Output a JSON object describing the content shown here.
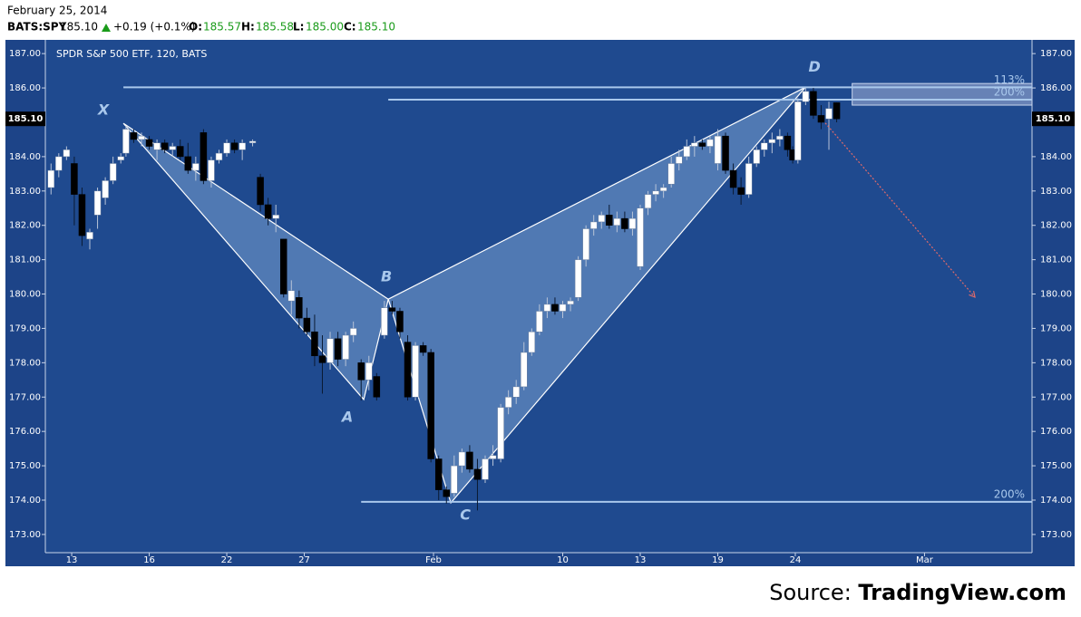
{
  "header": {
    "date": "February 25, 2014",
    "symbol": "BATS:SPY",
    "price": "185.10",
    "change": "+0.19 (+0.1%)",
    "open_label": "O:",
    "open": "185.57",
    "high_label": "H:",
    "high": "185.58",
    "low_label": "L:",
    "low": "185.00",
    "close_label": "C:",
    "close": "185.10"
  },
  "source": {
    "prefix": "Source:",
    "name": "TradingView.com"
  },
  "chart_data": {
    "type": "candlestick",
    "title": "SPDR S&P 500 ETF, 120, BATS",
    "up_color": "#ffffff",
    "down_color": "#000000",
    "xlim": [
      -1.02,
      37.16
    ],
    "xticks": [
      {
        "value": 0,
        "label": "13"
      },
      {
        "value": 3,
        "label": "16"
      },
      {
        "value": 6,
        "label": "22"
      },
      {
        "value": 9,
        "label": "27"
      },
      {
        "value": 14,
        "label": "Feb"
      },
      {
        "value": 19,
        "label": "10"
      },
      {
        "value": 22,
        "label": "13"
      },
      {
        "value": 25,
        "label": "19"
      },
      {
        "value": 28,
        "label": "24"
      },
      {
        "value": 33,
        "label": "Mar"
      }
    ],
    "ylim": [
      172.47,
      187.4
    ],
    "yticks": [
      {
        "value": 173,
        "label": "173.00"
      },
      {
        "value": 174,
        "label": "174.00"
      },
      {
        "value": 175,
        "label": "175.00"
      },
      {
        "value": 176,
        "label": "176.00"
      },
      {
        "value": 177,
        "label": "177.00"
      },
      {
        "value": 178,
        "label": "178.00"
      },
      {
        "value": 179,
        "label": "179.00"
      },
      {
        "value": 180,
        "label": "180.00"
      },
      {
        "value": 181,
        "label": "181.00"
      },
      {
        "value": 182,
        "label": "182.00"
      },
      {
        "value": 183,
        "label": "183.00"
      },
      {
        "value": 184,
        "label": "184.00"
      },
      {
        "value": 185,
        "label": "185.00"
      },
      {
        "value": 186,
        "label": "186.00"
      },
      {
        "value": 187,
        "label": "187.00"
      }
    ],
    "last_price": {
      "value": 185.1,
      "label": "185.10"
    },
    "candles": [
      {
        "x": -0.8,
        "o": 183.1,
        "h": 183.8,
        "l": 182.9,
        "c": 183.6
      },
      {
        "x": -0.5,
        "o": 183.6,
        "h": 184.1,
        "l": 183.4,
        "c": 184.0
      },
      {
        "x": -0.2,
        "o": 184.0,
        "h": 184.3,
        "l": 183.9,
        "c": 184.2
      },
      {
        "x": 0.1,
        "o": 183.8,
        "h": 184.0,
        "l": 182.0,
        "c": 182.9
      },
      {
        "x": 0.4,
        "o": 182.9,
        "h": 183.1,
        "l": 181.4,
        "c": 181.7
      },
      {
        "x": 0.7,
        "o": 181.6,
        "h": 181.9,
        "l": 181.3,
        "c": 181.8
      },
      {
        "x": 1.0,
        "o": 182.3,
        "h": 183.1,
        "l": 181.9,
        "c": 183.0
      },
      {
        "x": 1.3,
        "o": 182.8,
        "h": 183.4,
        "l": 182.6,
        "c": 183.3
      },
      {
        "x": 1.6,
        "o": 183.3,
        "h": 184.0,
        "l": 183.2,
        "c": 183.8
      },
      {
        "x": 1.9,
        "o": 183.9,
        "h": 184.1,
        "l": 183.8,
        "c": 184.0
      },
      {
        "x": 2.1,
        "o": 184.1,
        "h": 184.9,
        "l": 184.0,
        "c": 184.8
      },
      {
        "x": 2.4,
        "o": 184.7,
        "h": 184.8,
        "l": 184.4,
        "c": 184.5
      },
      {
        "x": 2.7,
        "o": 184.5,
        "h": 184.7,
        "l": 184.3,
        "c": 184.6
      },
      {
        "x": 3.0,
        "o": 184.5,
        "h": 184.6,
        "l": 184.2,
        "c": 184.3
      },
      {
        "x": 3.3,
        "o": 184.2,
        "h": 184.5,
        "l": 183.9,
        "c": 184.4
      },
      {
        "x": 3.6,
        "o": 184.4,
        "h": 184.5,
        "l": 184.1,
        "c": 184.2
      },
      {
        "x": 3.9,
        "o": 184.2,
        "h": 184.4,
        "l": 184.0,
        "c": 184.3
      },
      {
        "x": 4.2,
        "o": 184.3,
        "h": 184.5,
        "l": 183.9,
        "c": 184.0
      },
      {
        "x": 4.5,
        "o": 184.0,
        "h": 184.4,
        "l": 183.5,
        "c": 183.6
      },
      {
        "x": 4.8,
        "o": 183.6,
        "h": 184.0,
        "l": 183.3,
        "c": 183.8
      },
      {
        "x": 5.1,
        "o": 184.7,
        "h": 184.8,
        "l": 183.2,
        "c": 183.3
      },
      {
        "x": 5.4,
        "o": 183.3,
        "h": 184.0,
        "l": 183.1,
        "c": 183.9
      },
      {
        "x": 5.7,
        "o": 183.9,
        "h": 184.2,
        "l": 183.8,
        "c": 184.1
      },
      {
        "x": 6.0,
        "o": 184.1,
        "h": 184.5,
        "l": 184.0,
        "c": 184.4
      },
      {
        "x": 6.3,
        "o": 184.4,
        "h": 184.5,
        "l": 184.1,
        "c": 184.2
      },
      {
        "x": 6.6,
        "o": 184.2,
        "h": 184.5,
        "l": 183.9,
        "c": 184.4
      },
      {
        "x": 7.0,
        "o": 184.4,
        "h": 184.5,
        "l": 184.3,
        "c": 184.45
      },
      {
        "x": 7.3,
        "o": 183.4,
        "h": 183.5,
        "l": 182.4,
        "c": 182.6
      },
      {
        "x": 7.6,
        "o": 182.6,
        "h": 182.8,
        "l": 182.0,
        "c": 182.2
      },
      {
        "x": 7.9,
        "o": 182.2,
        "h": 182.6,
        "l": 181.8,
        "c": 182.3
      },
      {
        "x": 8.2,
        "o": 181.6,
        "h": 181.6,
        "l": 179.9,
        "c": 180.0
      },
      {
        "x": 8.5,
        "o": 179.8,
        "h": 180.4,
        "l": 179.4,
        "c": 180.1
      },
      {
        "x": 8.8,
        "o": 179.9,
        "h": 180.1,
        "l": 179.0,
        "c": 179.3
      },
      {
        "x": 9.1,
        "o": 179.3,
        "h": 179.6,
        "l": 178.8,
        "c": 178.9
      },
      {
        "x": 9.4,
        "o": 178.9,
        "h": 179.4,
        "l": 177.9,
        "c": 178.2
      },
      {
        "x": 9.7,
        "o": 178.2,
        "h": 178.8,
        "l": 177.1,
        "c": 178.0
      },
      {
        "x": 10.0,
        "o": 178.0,
        "h": 178.9,
        "l": 177.8,
        "c": 178.7
      },
      {
        "x": 10.3,
        "o": 178.7,
        "h": 178.9,
        "l": 177.9,
        "c": 178.1
      },
      {
        "x": 10.6,
        "o": 178.1,
        "h": 178.9,
        "l": 177.9,
        "c": 178.8
      },
      {
        "x": 10.9,
        "o": 178.8,
        "h": 179.2,
        "l": 178.6,
        "c": 179.0
      },
      {
        "x": 11.2,
        "o": 178.0,
        "h": 178.1,
        "l": 176.9,
        "c": 177.5
      },
      {
        "x": 11.5,
        "o": 177.5,
        "h": 178.2,
        "l": 177.2,
        "c": 178.0
      },
      {
        "x": 11.8,
        "o": 177.6,
        "h": 177.7,
        "l": 176.9,
        "c": 177.0
      },
      {
        "x": 12.1,
        "o": 178.8,
        "h": 179.8,
        "l": 178.7,
        "c": 179.6
      },
      {
        "x": 12.4,
        "o": 179.6,
        "h": 179.8,
        "l": 179.4,
        "c": 179.5
      },
      {
        "x": 12.7,
        "o": 179.5,
        "h": 179.6,
        "l": 178.7,
        "c": 178.9
      },
      {
        "x": 13.0,
        "o": 178.6,
        "h": 178.8,
        "l": 176.9,
        "c": 177.0
      },
      {
        "x": 13.3,
        "o": 177.0,
        "h": 178.6,
        "l": 176.9,
        "c": 178.5
      },
      {
        "x": 13.6,
        "o": 178.5,
        "h": 178.6,
        "l": 178.2,
        "c": 178.3
      },
      {
        "x": 13.9,
        "o": 178.3,
        "h": 178.4,
        "l": 175.1,
        "c": 175.2
      },
      {
        "x": 14.2,
        "o": 175.2,
        "h": 175.3,
        "l": 174.0,
        "c": 174.3
      },
      {
        "x": 14.5,
        "o": 174.3,
        "h": 174.4,
        "l": 173.9,
        "c": 174.1
      },
      {
        "x": 14.8,
        "o": 174.2,
        "h": 175.3,
        "l": 174.1,
        "c": 175.0
      },
      {
        "x": 15.1,
        "o": 175.0,
        "h": 175.5,
        "l": 174.8,
        "c": 175.4
      },
      {
        "x": 15.4,
        "o": 175.4,
        "h": 175.6,
        "l": 174.8,
        "c": 174.9
      },
      {
        "x": 15.7,
        "o": 174.9,
        "h": 175.2,
        "l": 173.7,
        "c": 174.6
      },
      {
        "x": 16.0,
        "o": 174.6,
        "h": 175.3,
        "l": 174.5,
        "c": 175.2
      },
      {
        "x": 16.3,
        "o": 175.2,
        "h": 175.6,
        "l": 175.0,
        "c": 175.3
      },
      {
        "x": 16.6,
        "o": 175.2,
        "h": 176.8,
        "l": 175.1,
        "c": 176.7
      },
      {
        "x": 16.9,
        "o": 176.7,
        "h": 177.2,
        "l": 176.5,
        "c": 177.0
      },
      {
        "x": 17.2,
        "o": 177.0,
        "h": 177.5,
        "l": 176.8,
        "c": 177.3
      },
      {
        "x": 17.5,
        "o": 177.3,
        "h": 178.6,
        "l": 177.2,
        "c": 178.3
      },
      {
        "x": 17.8,
        "o": 178.3,
        "h": 179.0,
        "l": 178.2,
        "c": 178.9
      },
      {
        "x": 18.1,
        "o": 178.9,
        "h": 179.7,
        "l": 178.8,
        "c": 179.5
      },
      {
        "x": 18.4,
        "o": 179.5,
        "h": 179.9,
        "l": 179.3,
        "c": 179.7
      },
      {
        "x": 18.7,
        "o": 179.7,
        "h": 179.9,
        "l": 179.4,
        "c": 179.5
      },
      {
        "x": 19.0,
        "o": 179.5,
        "h": 179.8,
        "l": 179.3,
        "c": 179.7
      },
      {
        "x": 19.3,
        "o": 179.7,
        "h": 179.9,
        "l": 179.5,
        "c": 179.8
      },
      {
        "x": 19.6,
        "o": 179.9,
        "h": 181.1,
        "l": 179.8,
        "c": 181.0
      },
      {
        "x": 19.9,
        "o": 181.0,
        "h": 182.0,
        "l": 180.8,
        "c": 181.9
      },
      {
        "x": 20.2,
        "o": 181.9,
        "h": 182.3,
        "l": 181.7,
        "c": 182.1
      },
      {
        "x": 20.5,
        "o": 182.1,
        "h": 182.4,
        "l": 181.9,
        "c": 182.3
      },
      {
        "x": 20.8,
        "o": 182.3,
        "h": 182.6,
        "l": 181.9,
        "c": 182.0
      },
      {
        "x": 21.1,
        "o": 182.0,
        "h": 182.4,
        "l": 181.8,
        "c": 182.2
      },
      {
        "x": 21.4,
        "o": 182.2,
        "h": 182.4,
        "l": 181.8,
        "c": 181.9
      },
      {
        "x": 21.7,
        "o": 181.9,
        "h": 182.4,
        "l": 181.7,
        "c": 182.2
      },
      {
        "x": 22.0,
        "o": 180.8,
        "h": 182.6,
        "l": 180.7,
        "c": 182.5
      },
      {
        "x": 22.3,
        "o": 182.5,
        "h": 183.0,
        "l": 182.3,
        "c": 182.9
      },
      {
        "x": 22.6,
        "o": 182.9,
        "h": 183.2,
        "l": 182.7,
        "c": 183.0
      },
      {
        "x": 22.9,
        "o": 183.0,
        "h": 183.2,
        "l": 182.8,
        "c": 183.1
      },
      {
        "x": 23.2,
        "o": 183.2,
        "h": 184.0,
        "l": 183.1,
        "c": 183.8
      },
      {
        "x": 23.5,
        "o": 183.8,
        "h": 184.2,
        "l": 183.6,
        "c": 184.0
      },
      {
        "x": 23.8,
        "o": 184.0,
        "h": 184.5,
        "l": 183.9,
        "c": 184.3
      },
      {
        "x": 24.1,
        "o": 184.3,
        "h": 184.6,
        "l": 184.0,
        "c": 184.4
      },
      {
        "x": 24.4,
        "o": 184.4,
        "h": 184.5,
        "l": 184.2,
        "c": 184.3
      },
      {
        "x": 24.7,
        "o": 184.3,
        "h": 184.6,
        "l": 184.1,
        "c": 184.5
      },
      {
        "x": 25.0,
        "o": 183.8,
        "h": 184.8,
        "l": 183.6,
        "c": 184.6
      },
      {
        "x": 25.3,
        "o": 184.6,
        "h": 184.7,
        "l": 183.5,
        "c": 183.6
      },
      {
        "x": 25.6,
        "o": 183.6,
        "h": 183.8,
        "l": 182.9,
        "c": 183.1
      },
      {
        "x": 25.9,
        "o": 183.1,
        "h": 183.4,
        "l": 182.6,
        "c": 182.9
      },
      {
        "x": 26.2,
        "o": 182.9,
        "h": 184.0,
        "l": 182.8,
        "c": 183.8
      },
      {
        "x": 26.5,
        "o": 183.8,
        "h": 184.3,
        "l": 183.7,
        "c": 184.2
      },
      {
        "x": 26.8,
        "o": 184.2,
        "h": 184.5,
        "l": 184.0,
        "c": 184.4
      },
      {
        "x": 27.1,
        "o": 184.4,
        "h": 184.7,
        "l": 184.1,
        "c": 184.5
      },
      {
        "x": 27.4,
        "o": 184.5,
        "h": 184.8,
        "l": 184.3,
        "c": 184.6
      },
      {
        "x": 27.7,
        "o": 184.6,
        "h": 184.7,
        "l": 184.0,
        "c": 184.2
      },
      {
        "x": 27.9,
        "o": 184.2,
        "h": 184.3,
        "l": 183.8,
        "c": 183.9
      },
      {
        "x": 28.1,
        "o": 183.9,
        "h": 185.7,
        "l": 183.8,
        "c": 185.6
      },
      {
        "x": 28.4,
        "o": 185.6,
        "h": 186.0,
        "l": 185.5,
        "c": 185.9
      },
      {
        "x": 28.7,
        "o": 185.9,
        "h": 186.0,
        "l": 185.1,
        "c": 185.2
      },
      {
        "x": 29.0,
        "o": 185.2,
        "h": 185.5,
        "l": 184.8,
        "c": 185.0
      },
      {
        "x": 29.3,
        "o": 185.1,
        "h": 185.6,
        "l": 184.2,
        "c": 185.4
      },
      {
        "x": 29.6,
        "o": 185.57,
        "h": 185.58,
        "l": 185.0,
        "c": 185.1
      }
    ],
    "pattern": [
      {
        "label": "X",
        "x": 2.0,
        "y": 184.97
      },
      {
        "label": "A",
        "x": 11.3,
        "y": 176.93
      },
      {
        "label": "B",
        "x": 12.25,
        "y": 179.85
      },
      {
        "label": "C",
        "x": 14.67,
        "y": 173.92
      },
      {
        "label": "D",
        "x": 28.39,
        "y": 186.02
      }
    ],
    "levels": [
      {
        "label": "113%",
        "value": 186.02,
        "x0": 2.0
      },
      {
        "label": "200%",
        "value": 185.66,
        "x0": 12.25
      },
      {
        "label": "200%",
        "value": 173.95,
        "x0": 11.2
      }
    ],
    "zone": {
      "x0": 30.2,
      "top": 186.13,
      "bottom": 185.5
    },
    "projection": {
      "from": [
        29.16,
        184.98
      ],
      "to": [
        34.95,
        179.91
      ]
    }
  }
}
